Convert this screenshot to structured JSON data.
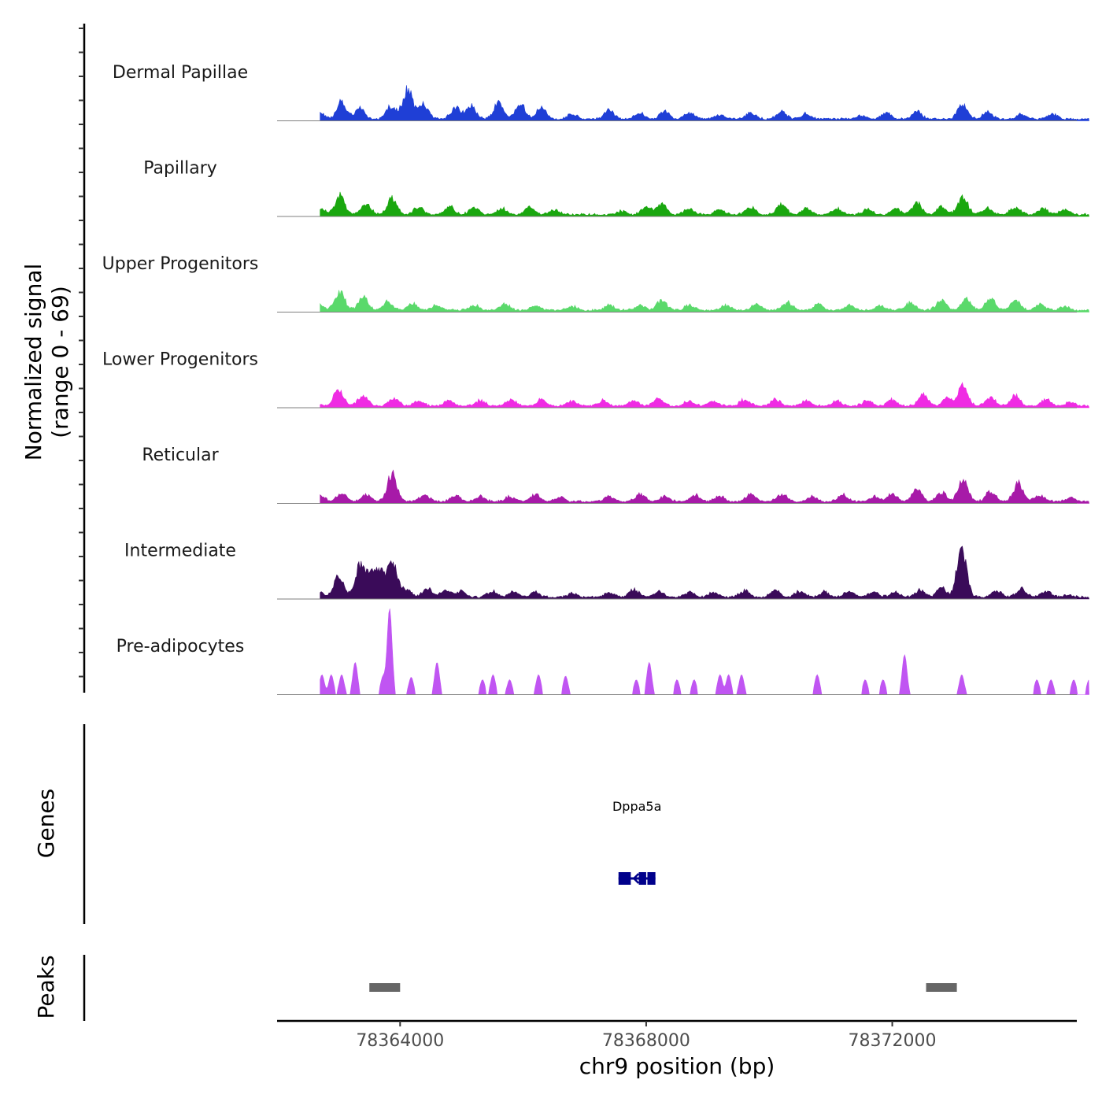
{
  "chart_data": {
    "type": "area",
    "title": "",
    "ylabel": "Normalized signal",
    "ylabel_range": "(range 0 - 69)",
    "ylim": [
      0,
      69
    ],
    "xlabel": "chr9 position (bp)",
    "xlim": [
      78362000,
      78375000
    ],
    "x_ticks": [
      78364000,
      78368000,
      78372000
    ],
    "x_tick_labels": [
      "78364000",
      "78368000",
      "78372000"
    ],
    "tracks": [
      {
        "name": "Dermal Papillae",
        "color": "#1f3fd6",
        "style": "smooth",
        "peaks": [
          [
            78362680,
            6
          ],
          [
            78363050,
            14
          ],
          [
            78363350,
            8
          ],
          [
            78363850,
            10
          ],
          [
            78364120,
            24
          ],
          [
            78364380,
            12
          ],
          [
            78364900,
            9
          ],
          [
            78365150,
            11
          ],
          [
            78365600,
            13
          ],
          [
            78365950,
            12
          ],
          [
            78366300,
            9
          ],
          [
            78366800,
            4
          ],
          [
            78367400,
            7
          ],
          [
            78367900,
            5
          ],
          [
            78368300,
            6
          ],
          [
            78368700,
            5
          ],
          [
            78369200,
            3
          ],
          [
            78369700,
            5
          ],
          [
            78370200,
            6
          ],
          [
            78370600,
            4
          ],
          [
            78371500,
            3
          ],
          [
            78371900,
            5
          ],
          [
            78372400,
            6
          ],
          [
            78373150,
            12
          ],
          [
            78373550,
            6
          ],
          [
            78374100,
            4
          ],
          [
            78374600,
            4
          ]
        ]
      },
      {
        "name": "Papillary",
        "color": "#1aa70f",
        "style": "smooth",
        "peaks": [
          [
            78362700,
            5
          ],
          [
            78363020,
            15
          ],
          [
            78363450,
            8
          ],
          [
            78363870,
            13
          ],
          [
            78364300,
            6
          ],
          [
            78364800,
            7
          ],
          [
            78365200,
            5
          ],
          [
            78365650,
            5
          ],
          [
            78366100,
            6
          ],
          [
            78366500,
            4
          ],
          [
            78367600,
            3
          ],
          [
            78368000,
            6
          ],
          [
            78368250,
            9
          ],
          [
            78368700,
            5
          ],
          [
            78369200,
            4
          ],
          [
            78369700,
            6
          ],
          [
            78370200,
            8
          ],
          [
            78370600,
            5
          ],
          [
            78371100,
            5
          ],
          [
            78371600,
            4
          ],
          [
            78372050,
            5
          ],
          [
            78372400,
            9
          ],
          [
            78372800,
            6
          ],
          [
            78373150,
            14
          ],
          [
            78373550,
            5
          ],
          [
            78374000,
            6
          ],
          [
            78374450,
            5
          ],
          [
            78374800,
            4
          ]
        ]
      },
      {
        "name": "Upper Progenitors",
        "color": "#5ad96b",
        "style": "smooth",
        "peaks": [
          [
            78362700,
            4
          ],
          [
            78363020,
            15
          ],
          [
            78363400,
            10
          ],
          [
            78363800,
            7
          ],
          [
            78364200,
            5
          ],
          [
            78364600,
            4
          ],
          [
            78365200,
            4
          ],
          [
            78365700,
            5
          ],
          [
            78366200,
            4
          ],
          [
            78366800,
            3
          ],
          [
            78367400,
            4
          ],
          [
            78367900,
            4
          ],
          [
            78368250,
            8
          ],
          [
            78368700,
            4
          ],
          [
            78369300,
            4
          ],
          [
            78369800,
            5
          ],
          [
            78370300,
            6
          ],
          [
            78370800,
            5
          ],
          [
            78371300,
            4
          ],
          [
            78371800,
            4
          ],
          [
            78372300,
            6
          ],
          [
            78372800,
            8
          ],
          [
            78373200,
            10
          ],
          [
            78373600,
            9
          ],
          [
            78374000,
            8
          ],
          [
            78374400,
            5
          ],
          [
            78374800,
            3
          ]
        ]
      },
      {
        "name": "Lower Progenitors",
        "color": "#ef2be3",
        "style": "smooth",
        "peaks": [
          [
            78362600,
            3
          ],
          [
            78363000,
            13
          ],
          [
            78363400,
            9
          ],
          [
            78363900,
            6
          ],
          [
            78364300,
            4
          ],
          [
            78364800,
            4
          ],
          [
            78365300,
            4
          ],
          [
            78365800,
            5
          ],
          [
            78366300,
            5
          ],
          [
            78366800,
            4
          ],
          [
            78367300,
            4
          ],
          [
            78367800,
            4
          ],
          [
            78368200,
            6
          ],
          [
            78368700,
            4
          ],
          [
            78369100,
            4
          ],
          [
            78369600,
            5
          ],
          [
            78370100,
            5
          ],
          [
            78370600,
            4
          ],
          [
            78371100,
            4
          ],
          [
            78371600,
            4
          ],
          [
            78372000,
            5
          ],
          [
            78372500,
            9
          ],
          [
            78372900,
            6
          ],
          [
            78373150,
            17
          ],
          [
            78373600,
            7
          ],
          [
            78374000,
            8
          ],
          [
            78374500,
            5
          ],
          [
            78374900,
            3
          ]
        ]
      },
      {
        "name": "Reticular",
        "color": "#a71aa8",
        "style": "smooth",
        "peaks": [
          [
            78362700,
            4
          ],
          [
            78363050,
            7
          ],
          [
            78363450,
            6
          ],
          [
            78363870,
            22
          ],
          [
            78364400,
            5
          ],
          [
            78364900,
            5
          ],
          [
            78365300,
            4
          ],
          [
            78365800,
            4
          ],
          [
            78366200,
            6
          ],
          [
            78366600,
            4
          ],
          [
            78367400,
            4
          ],
          [
            78367900,
            6
          ],
          [
            78368300,
            4
          ],
          [
            78368800,
            5
          ],
          [
            78369200,
            4
          ],
          [
            78369700,
            6
          ],
          [
            78370200,
            6
          ],
          [
            78370700,
            4
          ],
          [
            78371200,
            5
          ],
          [
            78371700,
            4
          ],
          [
            78372000,
            6
          ],
          [
            78372400,
            10
          ],
          [
            78372800,
            7
          ],
          [
            78373150,
            18
          ],
          [
            78373600,
            8
          ],
          [
            78374050,
            14
          ],
          [
            78374400,
            5
          ],
          [
            78374900,
            3
          ]
        ]
      },
      {
        "name": "Intermediate",
        "color": "#3a0b59",
        "style": "smooth",
        "peaks": [
          [
            78362650,
            5
          ],
          [
            78363000,
            17
          ],
          [
            78363350,
            26
          ],
          [
            78363500,
            12
          ],
          [
            78363650,
            22
          ],
          [
            78363870,
            28
          ],
          [
            78364100,
            6
          ],
          [
            78364450,
            7
          ],
          [
            78364750,
            6
          ],
          [
            78365000,
            5
          ],
          [
            78365500,
            5
          ],
          [
            78365850,
            5
          ],
          [
            78366200,
            4
          ],
          [
            78366800,
            3
          ],
          [
            78367400,
            4
          ],
          [
            78367800,
            6
          ],
          [
            78368200,
            5
          ],
          [
            78368700,
            4
          ],
          [
            78369100,
            4
          ],
          [
            78369600,
            5
          ],
          [
            78370100,
            6
          ],
          [
            78370500,
            5
          ],
          [
            78370900,
            4
          ],
          [
            78371300,
            5
          ],
          [
            78371700,
            4
          ],
          [
            78372050,
            4
          ],
          [
            78372450,
            6
          ],
          [
            78372800,
            8
          ],
          [
            78373130,
            38
          ],
          [
            78373700,
            5
          ],
          [
            78374100,
            7
          ],
          [
            78374500,
            5
          ],
          [
            78374850,
            2
          ]
        ]
      },
      {
        "name": "Pre-adipocytes",
        "color": "#c055f2",
        "style": "blocky",
        "peaks": [
          [
            78362730,
            16
          ],
          [
            78362880,
            16
          ],
          [
            78363050,
            16
          ],
          [
            78363270,
            26
          ],
          [
            78363720,
            14
          ],
          [
            78363830,
            69
          ],
          [
            78364180,
            14
          ],
          [
            78364600,
            26
          ],
          [
            78365340,
            12
          ],
          [
            78365510,
            16
          ],
          [
            78365780,
            12
          ],
          [
            78366250,
            16
          ],
          [
            78366690,
            15
          ],
          [
            78367840,
            12
          ],
          [
            78368050,
            26
          ],
          [
            78368500,
            12
          ],
          [
            78368780,
            12
          ],
          [
            78369200,
            16
          ],
          [
            78369340,
            16
          ],
          [
            78369550,
            16
          ],
          [
            78370780,
            16
          ],
          [
            78371560,
            12
          ],
          [
            78371850,
            12
          ],
          [
            78372200,
            32
          ],
          [
            78373130,
            16
          ],
          [
            78374350,
            12
          ],
          [
            78374580,
            12
          ],
          [
            78374950,
            12
          ],
          [
            78375200,
            12
          ]
        ]
      }
    ],
    "genes": [
      {
        "name": "Dppa5a",
        "start": 78367550,
        "end": 78368150,
        "strand": "-",
        "exons": [
          [
            78367550,
            78367750
          ],
          [
            78367880,
            78368000
          ],
          [
            78368020,
            78368150
          ]
        ],
        "color": "#00008b"
      }
    ],
    "peak_regions": [
      [
        78363500,
        78364000
      ],
      [
        78372550,
        78373050
      ]
    ],
    "peak_color": "#666666",
    "panel_labels": {
      "genes": "Genes",
      "peaks": "Peaks"
    }
  }
}
